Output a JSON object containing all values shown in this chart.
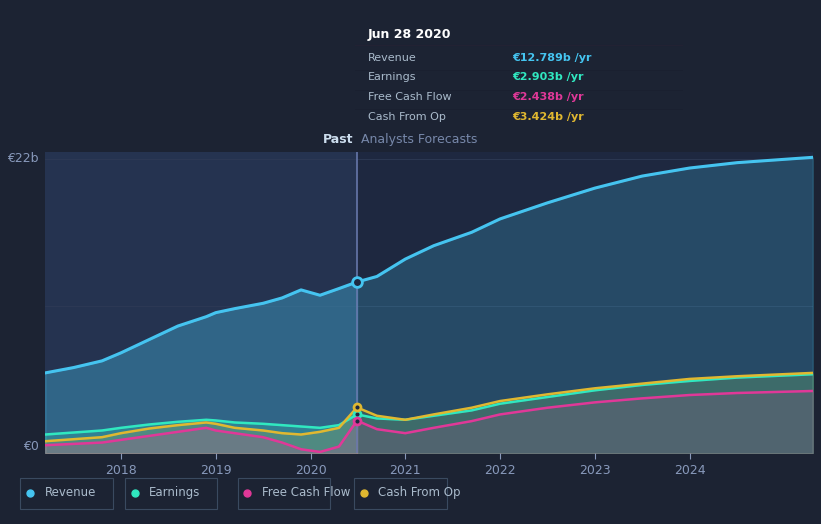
{
  "bg_color": "#1c2333",
  "plot_bg_past": "#243048",
  "plot_bg_future": "#1e2840",
  "divider_x": 2020.49,
  "y_max": 22,
  "y_min": 0,
  "x_min": 2017.2,
  "x_max": 2025.3,
  "xticks": [
    2018,
    2019,
    2020,
    2021,
    2022,
    2023,
    2024
  ],
  "colors": {
    "revenue": "#45c4f0",
    "earnings": "#30e8c0",
    "fcf": "#e03898",
    "cfo": "#e0b830"
  },
  "revenue_past": [
    [
      2017.2,
      6.0
    ],
    [
      2017.5,
      6.4
    ],
    [
      2017.8,
      6.9
    ],
    [
      2018.0,
      7.5
    ],
    [
      2018.3,
      8.5
    ],
    [
      2018.6,
      9.5
    ],
    [
      2018.9,
      10.2
    ],
    [
      2019.0,
      10.5
    ],
    [
      2019.2,
      10.8
    ],
    [
      2019.5,
      11.2
    ],
    [
      2019.7,
      11.6
    ],
    [
      2019.9,
      12.2
    ],
    [
      2020.1,
      11.8
    ],
    [
      2020.3,
      12.3
    ],
    [
      2020.49,
      12.789
    ]
  ],
  "revenue_future": [
    [
      2020.49,
      12.789
    ],
    [
      2020.7,
      13.2
    ],
    [
      2021.0,
      14.5
    ],
    [
      2021.3,
      15.5
    ],
    [
      2021.7,
      16.5
    ],
    [
      2022.0,
      17.5
    ],
    [
      2022.5,
      18.7
    ],
    [
      2023.0,
      19.8
    ],
    [
      2023.5,
      20.7
    ],
    [
      2024.0,
      21.3
    ],
    [
      2024.5,
      21.7
    ],
    [
      2025.3,
      22.1
    ]
  ],
  "earnings_past": [
    [
      2017.2,
      1.4
    ],
    [
      2017.5,
      1.55
    ],
    [
      2017.8,
      1.7
    ],
    [
      2018.0,
      1.9
    ],
    [
      2018.3,
      2.15
    ],
    [
      2018.6,
      2.35
    ],
    [
      2018.9,
      2.5
    ],
    [
      2019.0,
      2.45
    ],
    [
      2019.2,
      2.3
    ],
    [
      2019.5,
      2.2
    ],
    [
      2019.7,
      2.1
    ],
    [
      2019.9,
      2.0
    ],
    [
      2020.1,
      1.9
    ],
    [
      2020.3,
      2.1
    ],
    [
      2020.49,
      2.903
    ]
  ],
  "earnings_future": [
    [
      2020.49,
      2.903
    ],
    [
      2020.7,
      2.6
    ],
    [
      2021.0,
      2.5
    ],
    [
      2021.3,
      2.8
    ],
    [
      2021.7,
      3.2
    ],
    [
      2022.0,
      3.7
    ],
    [
      2022.5,
      4.2
    ],
    [
      2023.0,
      4.7
    ],
    [
      2023.5,
      5.1
    ],
    [
      2024.0,
      5.4
    ],
    [
      2024.5,
      5.65
    ],
    [
      2025.3,
      5.9
    ]
  ],
  "fcf_past": [
    [
      2017.2,
      0.6
    ],
    [
      2017.5,
      0.7
    ],
    [
      2017.8,
      0.8
    ],
    [
      2018.0,
      1.0
    ],
    [
      2018.3,
      1.3
    ],
    [
      2018.6,
      1.6
    ],
    [
      2018.9,
      1.9
    ],
    [
      2019.0,
      1.7
    ],
    [
      2019.2,
      1.5
    ],
    [
      2019.5,
      1.2
    ],
    [
      2019.7,
      0.8
    ],
    [
      2019.9,
      0.3
    ],
    [
      2020.1,
      0.1
    ],
    [
      2020.3,
      0.5
    ],
    [
      2020.49,
      2.438
    ]
  ],
  "fcf_future": [
    [
      2020.49,
      2.438
    ],
    [
      2020.7,
      1.8
    ],
    [
      2021.0,
      1.5
    ],
    [
      2021.3,
      1.9
    ],
    [
      2021.7,
      2.4
    ],
    [
      2022.0,
      2.9
    ],
    [
      2022.5,
      3.4
    ],
    [
      2023.0,
      3.8
    ],
    [
      2023.5,
      4.1
    ],
    [
      2024.0,
      4.35
    ],
    [
      2024.5,
      4.5
    ],
    [
      2025.3,
      4.65
    ]
  ],
  "cfo_past": [
    [
      2017.2,
      0.9
    ],
    [
      2017.5,
      1.05
    ],
    [
      2017.8,
      1.2
    ],
    [
      2018.0,
      1.5
    ],
    [
      2018.3,
      1.85
    ],
    [
      2018.6,
      2.1
    ],
    [
      2018.9,
      2.3
    ],
    [
      2019.0,
      2.2
    ],
    [
      2019.2,
      1.9
    ],
    [
      2019.5,
      1.7
    ],
    [
      2019.7,
      1.5
    ],
    [
      2019.9,
      1.4
    ],
    [
      2020.1,
      1.6
    ],
    [
      2020.3,
      1.9
    ],
    [
      2020.49,
      3.424
    ]
  ],
  "cfo_future": [
    [
      2020.49,
      3.424
    ],
    [
      2020.7,
      2.8
    ],
    [
      2021.0,
      2.5
    ],
    [
      2021.3,
      2.9
    ],
    [
      2021.7,
      3.4
    ],
    [
      2022.0,
      3.9
    ],
    [
      2022.5,
      4.4
    ],
    [
      2023.0,
      4.85
    ],
    [
      2023.5,
      5.2
    ],
    [
      2024.0,
      5.55
    ],
    [
      2024.5,
      5.75
    ],
    [
      2025.3,
      6.0
    ]
  ],
  "tooltip_title": "Jun 28 2020",
  "tooltip_rows": [
    {
      "label": "Revenue",
      "value": "€12.789b /yr",
      "color": "#45c4f0"
    },
    {
      "label": "Earnings",
      "value": "€2.903b /yr",
      "color": "#30e8c0"
    },
    {
      "label": "Free Cash Flow",
      "value": "€2.438b /yr",
      "color": "#e03898"
    },
    {
      "label": "Cash From Op",
      "value": "€3.424b /yr",
      "color": "#e0b830"
    }
  ],
  "legend_items": [
    {
      "label": "Revenue",
      "color": "#45c4f0"
    },
    {
      "label": "Earnings",
      "color": "#30e8c0"
    },
    {
      "label": "Free Cash Flow",
      "color": "#e03898"
    },
    {
      "label": "Cash From Op",
      "color": "#e0b830"
    }
  ]
}
